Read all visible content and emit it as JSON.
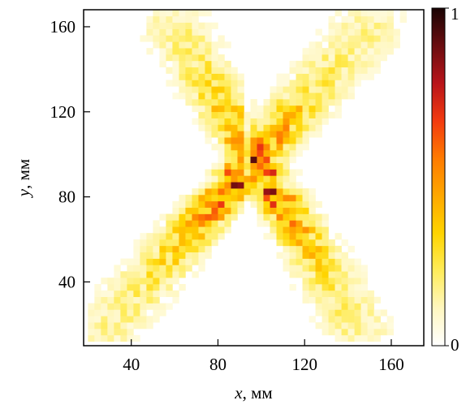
{
  "chart_data": {
    "type": "heatmap",
    "title": "",
    "x_axis": {
      "var": "x",
      "unit": ", мм",
      "range": [
        18,
        175
      ],
      "ticks": [
        40,
        80,
        120,
        160
      ]
    },
    "y_axis": {
      "var": "y",
      "unit": ", мм",
      "range": [
        10,
        168
      ],
      "ticks": [
        40,
        80,
        120,
        160
      ]
    },
    "colorbar": {
      "min_label": "0",
      "max_label": "1",
      "range": [
        0,
        1
      ]
    },
    "colormap": [
      "#ffffff",
      "#fff7c0",
      "#ffec5a",
      "#ffd400",
      "#ffa800",
      "#ff7a00",
      "#f23a10",
      "#b8141a",
      "#6a0d10",
      "#1a0404"
    ],
    "cell_size_mm": 3,
    "grid_x_range": [
      20,
      170
    ],
    "grid_y_range": [
      12,
      166
    ],
    "pattern": {
      "description": "X-shaped intensity distribution: two diagonal bands crossing near (92, 85)",
      "center": [
        93,
        85
      ],
      "band_1_endpoints": [
        [
          28,
          18
        ],
        [
          150,
          160
        ]
      ],
      "band_2_endpoints": [
        [
          60,
          160
        ],
        [
          145,
          18
        ]
      ],
      "peak_value": 1.0
    }
  }
}
